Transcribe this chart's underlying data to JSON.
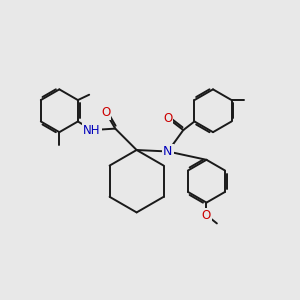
{
  "background_color": "#e8e8e8",
  "bond_color": "#1a1a1a",
  "bond_width": 1.4,
  "N_color": "#0000bb",
  "O_color": "#cc0000",
  "font_size_atom": 8.5,
  "fig_width": 3.0,
  "fig_height": 3.0,
  "dpi": 100,
  "xlim": [
    0,
    10
  ],
  "ylim": [
    0,
    10
  ]
}
